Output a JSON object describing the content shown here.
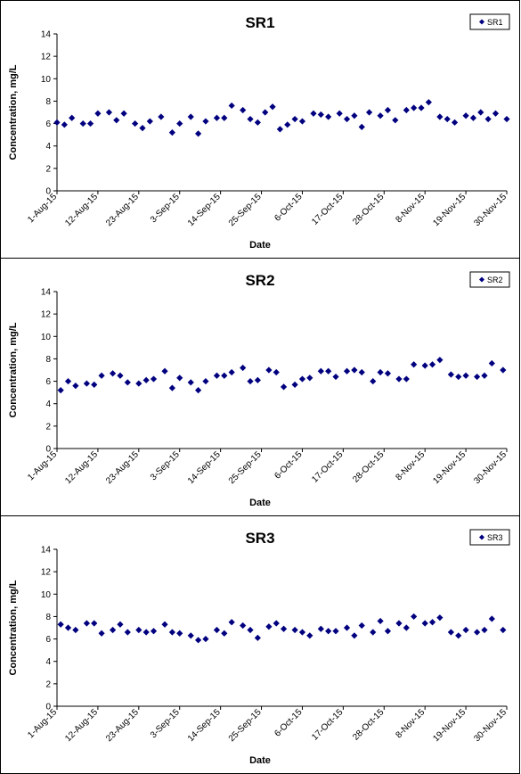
{
  "chart_data": [
    {
      "type": "scatter",
      "title": "SR1",
      "xlabel": "Date",
      "ylabel": "Concentration, mg/L",
      "ylim": [
        0,
        14
      ],
      "yticks": [
        "0",
        "2",
        "4",
        "6",
        "8",
        "10",
        "12",
        "14"
      ],
      "xlim": [
        "2015-08-01",
        "2015-11-30"
      ],
      "xticks": [
        "1-Aug-15",
        "12-Aug-15",
        "23-Aug-15",
        "3-Sep-15",
        "14-Sep-15",
        "25-Sep-15",
        "6-Oct-15",
        "17-Oct-15",
        "28-Oct-15",
        "8-Nov-15",
        "19-Nov-15",
        "30-Nov-15"
      ],
      "legend_position": "top-right",
      "marker_color": "#00007F",
      "series": [
        {
          "name": "SR1",
          "x": [
            "2015-08-01",
            "2015-08-03",
            "2015-08-05",
            "2015-08-08",
            "2015-08-10",
            "2015-08-12",
            "2015-08-15",
            "2015-08-17",
            "2015-08-19",
            "2015-08-22",
            "2015-08-24",
            "2015-08-26",
            "2015-08-29",
            "2015-09-01",
            "2015-09-03",
            "2015-09-06",
            "2015-09-08",
            "2015-09-10",
            "2015-09-13",
            "2015-09-15",
            "2015-09-17",
            "2015-09-20",
            "2015-09-22",
            "2015-09-24",
            "2015-09-26",
            "2015-09-28",
            "2015-09-30",
            "2015-10-02",
            "2015-10-04",
            "2015-10-06",
            "2015-10-09",
            "2015-10-11",
            "2015-10-13",
            "2015-10-16",
            "2015-10-18",
            "2015-10-20",
            "2015-10-22",
            "2015-10-24",
            "2015-10-27",
            "2015-10-29",
            "2015-10-31",
            "2015-11-03",
            "2015-11-05",
            "2015-11-07",
            "2015-11-09",
            "2015-11-12",
            "2015-11-14",
            "2015-11-16",
            "2015-11-19",
            "2015-11-21",
            "2015-11-23",
            "2015-11-25",
            "2015-11-27",
            "2015-11-30"
          ],
          "y": [
            6.1,
            5.9,
            6.5,
            6.0,
            6.0,
            6.9,
            7.0,
            6.3,
            6.9,
            6.0,
            5.6,
            6.2,
            6.6,
            5.2,
            6.0,
            6.6,
            5.1,
            6.2,
            6.5,
            6.5,
            7.6,
            7.2,
            6.4,
            6.1,
            7.0,
            7.5,
            5.5,
            5.9,
            6.4,
            6.2,
            6.9,
            6.8,
            6.6,
            6.9,
            6.4,
            6.7,
            5.7,
            7.0,
            6.7,
            7.2,
            6.3,
            7.2,
            7.4,
            7.4,
            7.9,
            6.6,
            6.4,
            6.1,
            6.7,
            6.5,
            7.0,
            6.4,
            6.9,
            6.4
          ]
        }
      ]
    },
    {
      "type": "scatter",
      "title": "SR2",
      "xlabel": "Date",
      "ylabel": "Concentration, mg/L",
      "ylim": [
        0,
        14
      ],
      "yticks": [
        "0",
        "2",
        "4",
        "6",
        "8",
        "10",
        "12",
        "14"
      ],
      "xlim": [
        "2015-08-01",
        "2015-11-30"
      ],
      "xticks": [
        "1-Aug-15",
        "12-Aug-15",
        "23-Aug-15",
        "3-Sep-15",
        "14-Sep-15",
        "25-Sep-15",
        "6-Oct-15",
        "17-Oct-15",
        "28-Oct-15",
        "8-Nov-15",
        "19-Nov-15",
        "30-Nov-15"
      ],
      "legend_position": "top-right",
      "marker_color": "#00007F",
      "series": [
        {
          "name": "SR2",
          "x": [
            "2015-08-02",
            "2015-08-04",
            "2015-08-06",
            "2015-08-09",
            "2015-08-11",
            "2015-08-13",
            "2015-08-16",
            "2015-08-18",
            "2015-08-20",
            "2015-08-23",
            "2015-08-25",
            "2015-08-27",
            "2015-08-30",
            "2015-09-01",
            "2015-09-03",
            "2015-09-06",
            "2015-09-08",
            "2015-09-10",
            "2015-09-13",
            "2015-09-15",
            "2015-09-17",
            "2015-09-20",
            "2015-09-22",
            "2015-09-24",
            "2015-09-27",
            "2015-09-29",
            "2015-10-01",
            "2015-10-04",
            "2015-10-06",
            "2015-10-08",
            "2015-10-11",
            "2015-10-13",
            "2015-10-15",
            "2015-10-18",
            "2015-10-20",
            "2015-10-22",
            "2015-10-25",
            "2015-10-27",
            "2015-10-29",
            "2015-11-01",
            "2015-11-03",
            "2015-11-05",
            "2015-11-08",
            "2015-11-10",
            "2015-11-12",
            "2015-11-15",
            "2015-11-17",
            "2015-11-19",
            "2015-11-22",
            "2015-11-24",
            "2015-11-26",
            "2015-11-29"
          ],
          "y": [
            5.2,
            6.0,
            5.6,
            5.8,
            5.7,
            6.5,
            6.7,
            6.5,
            5.9,
            5.8,
            6.1,
            6.2,
            6.9,
            5.4,
            6.3,
            5.9,
            5.2,
            6.0,
            6.5,
            6.5,
            6.8,
            7.2,
            6.0,
            6.1,
            7.0,
            6.8,
            5.5,
            5.7,
            6.2,
            6.3,
            6.9,
            6.9,
            6.4,
            6.9,
            7.0,
            6.8,
            6.0,
            6.8,
            6.7,
            6.2,
            6.2,
            7.5,
            7.4,
            7.5,
            7.9,
            6.6,
            6.4,
            6.5,
            6.4,
            6.5,
            7.6,
            7.0
          ]
        }
      ]
    },
    {
      "type": "scatter",
      "title": "SR3",
      "xlabel": "Date",
      "ylabel": "Concentration, mg/L",
      "ylim": [
        0,
        14
      ],
      "yticks": [
        "0",
        "2",
        "4",
        "6",
        "8",
        "10",
        "12",
        "14"
      ],
      "xlim": [
        "2015-08-01",
        "2015-11-30"
      ],
      "xticks": [
        "1-Aug-15",
        "12-Aug-15",
        "23-Aug-15",
        "3-Sep-15",
        "14-Sep-15",
        "25-Sep-15",
        "6-Oct-15",
        "17-Oct-15",
        "28-Oct-15",
        "8-Nov-15",
        "19-Nov-15",
        "30-Nov-15"
      ],
      "legend_position": "top-right",
      "marker_color": "#00007F",
      "series": [
        {
          "name": "SR3",
          "x": [
            "2015-08-02",
            "2015-08-04",
            "2015-08-06",
            "2015-08-09",
            "2015-08-11",
            "2015-08-13",
            "2015-08-16",
            "2015-08-18",
            "2015-08-20",
            "2015-08-23",
            "2015-08-25",
            "2015-08-27",
            "2015-08-30",
            "2015-09-01",
            "2015-09-03",
            "2015-09-06",
            "2015-09-08",
            "2015-09-10",
            "2015-09-13",
            "2015-09-15",
            "2015-09-17",
            "2015-09-20",
            "2015-09-22",
            "2015-09-24",
            "2015-09-27",
            "2015-09-29",
            "2015-10-01",
            "2015-10-04",
            "2015-10-06",
            "2015-10-08",
            "2015-10-11",
            "2015-10-13",
            "2015-10-15",
            "2015-10-18",
            "2015-10-20",
            "2015-10-22",
            "2015-10-25",
            "2015-10-27",
            "2015-10-29",
            "2015-11-01",
            "2015-11-03",
            "2015-11-05",
            "2015-11-08",
            "2015-11-10",
            "2015-11-12",
            "2015-11-15",
            "2015-11-17",
            "2015-11-19",
            "2015-11-22",
            "2015-11-24",
            "2015-11-26",
            "2015-11-29"
          ],
          "y": [
            7.3,
            7.0,
            6.8,
            7.4,
            7.4,
            6.5,
            6.8,
            7.3,
            6.6,
            6.8,
            6.6,
            6.7,
            7.3,
            6.6,
            6.5,
            6.3,
            5.9,
            6.0,
            6.8,
            6.5,
            7.5,
            7.2,
            6.8,
            6.1,
            7.1,
            7.4,
            6.9,
            6.8,
            6.6,
            6.3,
            6.9,
            6.7,
            6.7,
            7.0,
            6.3,
            7.2,
            6.6,
            7.6,
            6.7,
            7.4,
            7.0,
            8.0,
            7.4,
            7.5,
            7.9,
            6.6,
            6.3,
            6.8,
            6.6,
            6.8,
            7.8,
            6.8
          ]
        }
      ]
    }
  ]
}
